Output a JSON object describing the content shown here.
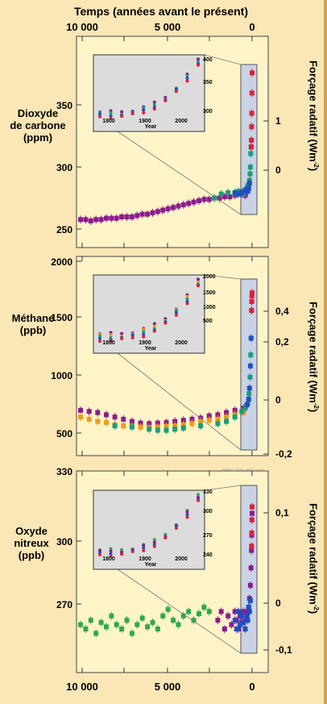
{
  "header": {
    "title": "Temps (années avant le présent)",
    "x_ticks": [
      "10 000",
      "5 000",
      "0"
    ]
  },
  "footer": {
    "x_ticks": [
      "10 000",
      "5 000",
      "0"
    ]
  },
  "credit": "©IPCC 2001 WG1-i-4/4",
  "colors": {
    "background": "#fbe6b6",
    "plot": "#fff4c8",
    "inset": "#dcdcdc",
    "recent": "#c9d3e4"
  },
  "chart_data": [
    {
      "type": "scatter",
      "title": "Dioxyde de carbone (ppm)",
      "ylabel": "Dioxyde de carbone (ppm)",
      "right_label": "Forçage radatif (Wm-2)",
      "xlim": [
        10000,
        0
      ],
      "ylim": [
        245,
        390
      ],
      "y_ticks": [
        "350",
        "300",
        "250"
      ],
      "right_ticks": [
        "1",
        "0"
      ],
      "series": [
        {
          "color": "#8b1c8e",
          "x": [
            10000,
            9700,
            9400,
            9100,
            8800,
            8500,
            8200,
            7900,
            7600,
            7300,
            7000,
            6700,
            6400,
            6100,
            5800,
            5500,
            5200,
            4900,
            4600,
            4300,
            4000,
            3700,
            3400,
            3100,
            2800,
            2500,
            2200,
            1900,
            1600,
            1300,
            1000,
            800,
            600,
            400
          ],
          "y": [
            261,
            261,
            260,
            261,
            261,
            262,
            262,
            262,
            263,
            263,
            263,
            264,
            265,
            265,
            266,
            267,
            268,
            269,
            270,
            271,
            272,
            273,
            274,
            275,
            276,
            276,
            277,
            277,
            278,
            278,
            279,
            280,
            280,
            279
          ]
        },
        {
          "color": "#1b9e77",
          "x": [
            2200,
            1800,
            1400,
            1000,
            800,
            600,
            500,
            400,
            300,
            250,
            200,
            150,
            120,
            100,
            80,
            60
          ],
          "y": [
            277,
            280,
            281,
            280,
            282,
            281,
            280,
            282,
            284,
            286,
            287,
            290,
            295,
            300,
            310,
            315
          ]
        },
        {
          "color": "#1f4fc0",
          "x": [
            1000,
            800,
            600,
            400,
            300,
            250,
            200,
            150
          ],
          "y": [
            281,
            280,
            281,
            283,
            283,
            282,
            284,
            288
          ]
        },
        {
          "color": "#e0203c",
          "x": [
            50,
            40,
            30,
            20,
            10,
            0
          ],
          "y": [
            315,
            320,
            330,
            340,
            355,
            370
          ]
        }
      ],
      "inset": {
        "x_ticks": [
          "1800",
          "1900",
          "2000"
        ],
        "y_ticks": [
          "400",
          "350",
          "300"
        ],
        "xlabel": "Year"
      }
    },
    {
      "type": "scatter",
      "title": "Méthane (ppb)",
      "ylabel": "Méthane (ppb)",
      "right_label": "Forçage radatif (Wm-2)",
      "xlim": [
        10000,
        0
      ],
      "ylim": [
        350,
        2000
      ],
      "y_ticks": [
        "2000",
        "1500",
        "1000",
        "500"
      ],
      "right_ticks": [
        "0,4",
        "0,2",
        "0",
        "-0,2"
      ],
      "series": [
        {
          "color": "#8b1c8e",
          "x": [
            10000,
            9500,
            9000,
            8500,
            8000,
            7500,
            7000,
            6500,
            6000,
            5500,
            5000,
            4500,
            4000,
            3500,
            3000,
            2500,
            2000,
            1500,
            1000,
            500
          ],
          "y": [
            700,
            690,
            680,
            660,
            640,
            620,
            600,
            585,
            580,
            585,
            590,
            600,
            610,
            620,
            630,
            650,
            660,
            680,
            700,
            720
          ]
        },
        {
          "color": "#f29a1b",
          "x": [
            10000,
            9500,
            9000,
            8500,
            8000,
            7500,
            7000,
            6500,
            6000,
            5500,
            5000,
            4500,
            4000,
            3500,
            3000,
            2500,
            2000,
            1500,
            1000,
            500
          ],
          "y": [
            640,
            620,
            600,
            590,
            570,
            560,
            555,
            550,
            545,
            550,
            555,
            560,
            570,
            580,
            600,
            610,
            620,
            640,
            660,
            680
          ]
        },
        {
          "color": "#1b9e77",
          "x": [
            8000,
            7000,
            6000,
            5500,
            5000,
            4500,
            4000,
            3000,
            2000,
            1500,
            1000,
            600,
            400,
            250,
            180,
            120,
            80
          ],
          "y": [
            560,
            550,
            530,
            520,
            520,
            530,
            540,
            560,
            580,
            600,
            640,
            690,
            720,
            760,
            850,
            1000,
            1200
          ]
        },
        {
          "color": "#1f4fc0",
          "x": [
            300,
            200,
            150,
            100,
            60,
            30
          ],
          "y": [
            750,
            800,
            900,
            1100,
            1350,
            1600
          ]
        },
        {
          "color": "#e0203c",
          "x": [
            30,
            20,
            10,
            0
          ],
          "y": [
            1600,
            1680,
            1730,
            1760
          ]
        }
      ],
      "inset": {
        "x_ticks": [
          "1800",
          "1900",
          "2000"
        ],
        "y_ticks": [
          "2000",
          "1500",
          "1000",
          "500"
        ],
        "xlabel": "Year"
      }
    },
    {
      "type": "scatter",
      "title": "Oxyde nitreux (ppb)",
      "ylabel": "Oxyde nitreux (ppb)",
      "right_label": "Forçage radatif (Wm-2)",
      "xlim": [
        10000,
        0
      ],
      "ylim": [
        245,
        330
      ],
      "y_ticks": [
        "330",
        "300",
        "270"
      ],
      "right_ticks": [
        "0,1",
        "0",
        "-0,1"
      ],
      "series": [
        {
          "color": "#2fa84f",
          "x": [
            10000,
            9700,
            9400,
            9100,
            8800,
            8500,
            8200,
            7900,
            7600,
            7300,
            7000,
            6700,
            6400,
            6100,
            5800,
            5500,
            5200,
            4900,
            4600,
            4300,
            4000,
            3700,
            3400,
            3100,
            2800,
            2500
          ],
          "y": [
            264,
            262,
            266,
            260,
            265,
            263,
            268,
            264,
            262,
            266,
            260,
            264,
            267,
            263,
            265,
            262,
            268,
            271,
            266,
            264,
            268,
            270,
            266,
            269,
            272,
            270
          ]
        },
        {
          "color": "#8b1c8e",
          "x": [
            2000,
            1800,
            1600,
            1400,
            1200,
            1000,
            900,
            800,
            700,
            600,
            500,
            400,
            300,
            250,
            200,
            150,
            100,
            60,
            40,
            20,
            0
          ],
          "y": [
            266,
            270,
            262,
            268,
            264,
            270,
            266,
            262,
            268,
            265,
            270,
            266,
            268,
            270,
            272,
            276,
            282,
            290,
            298,
            305,
            315
          ]
        },
        {
          "color": "#1f4fc0",
          "x": [
            1000,
            900,
            800,
            700,
            600,
            500,
            400,
            300,
            250,
            200,
            150,
            100
          ],
          "y": [
            266,
            262,
            270,
            264,
            268,
            265,
            262,
            268,
            266,
            272,
            270,
            275
          ]
        },
        {
          "color": "#e0203c",
          "x": [
            30,
            20,
            10,
            0
          ],
          "y": [
            300,
            306,
            312,
            318
          ]
        }
      ],
      "inset": {
        "x_ticks": [
          "1800",
          "1900",
          "2000"
        ],
        "y_ticks": [
          "330",
          "300",
          "270",
          "240"
        ],
        "xlabel": "Year"
      }
    }
  ]
}
